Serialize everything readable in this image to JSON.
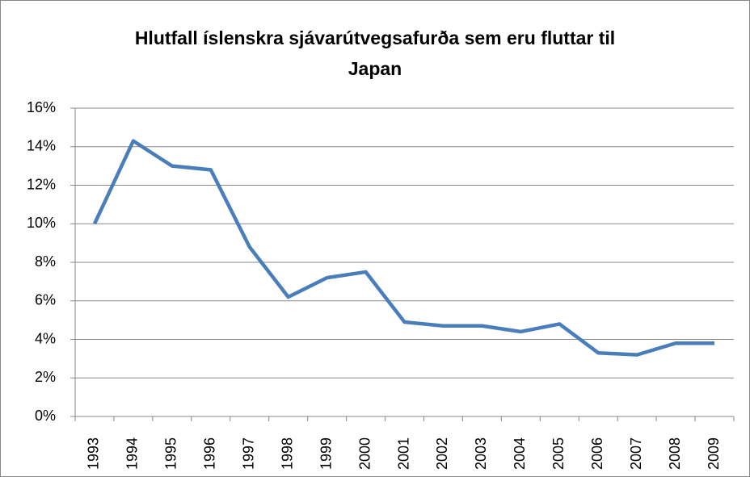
{
  "chart_data": {
    "type": "line",
    "title": "Hlutfall íslenskra sjávarútvegsafurða sem eru fluttar til Japan",
    "categories": [
      "1993",
      "1994",
      "1995",
      "1996",
      "1997",
      "1998",
      "1999",
      "2000",
      "2001",
      "2002",
      "2003",
      "2004",
      "2005",
      "2006",
      "2007",
      "2008",
      "2009"
    ],
    "series": [
      {
        "name": "Hlutfall",
        "color": "#4a7ebb",
        "values": [
          10.0,
          14.3,
          13.0,
          12.8,
          8.8,
          6.2,
          7.2,
          7.5,
          4.9,
          4.7,
          4.7,
          4.4,
          4.8,
          3.3,
          3.2,
          3.8,
          3.8
        ]
      }
    ],
    "ylim": [
      0,
      16
    ],
    "yticks": [
      {
        "value": 0,
        "label": "0%"
      },
      {
        "value": 2,
        "label": "2%"
      },
      {
        "value": 4,
        "label": "4%"
      },
      {
        "value": 6,
        "label": "6%"
      },
      {
        "value": 8,
        "label": "8%"
      },
      {
        "value": 10,
        "label": "10%"
      },
      {
        "value": 12,
        "label": "12%"
      },
      {
        "value": 14,
        "label": "14%"
      },
      {
        "value": 16,
        "label": "16%"
      }
    ],
    "grid": true
  }
}
